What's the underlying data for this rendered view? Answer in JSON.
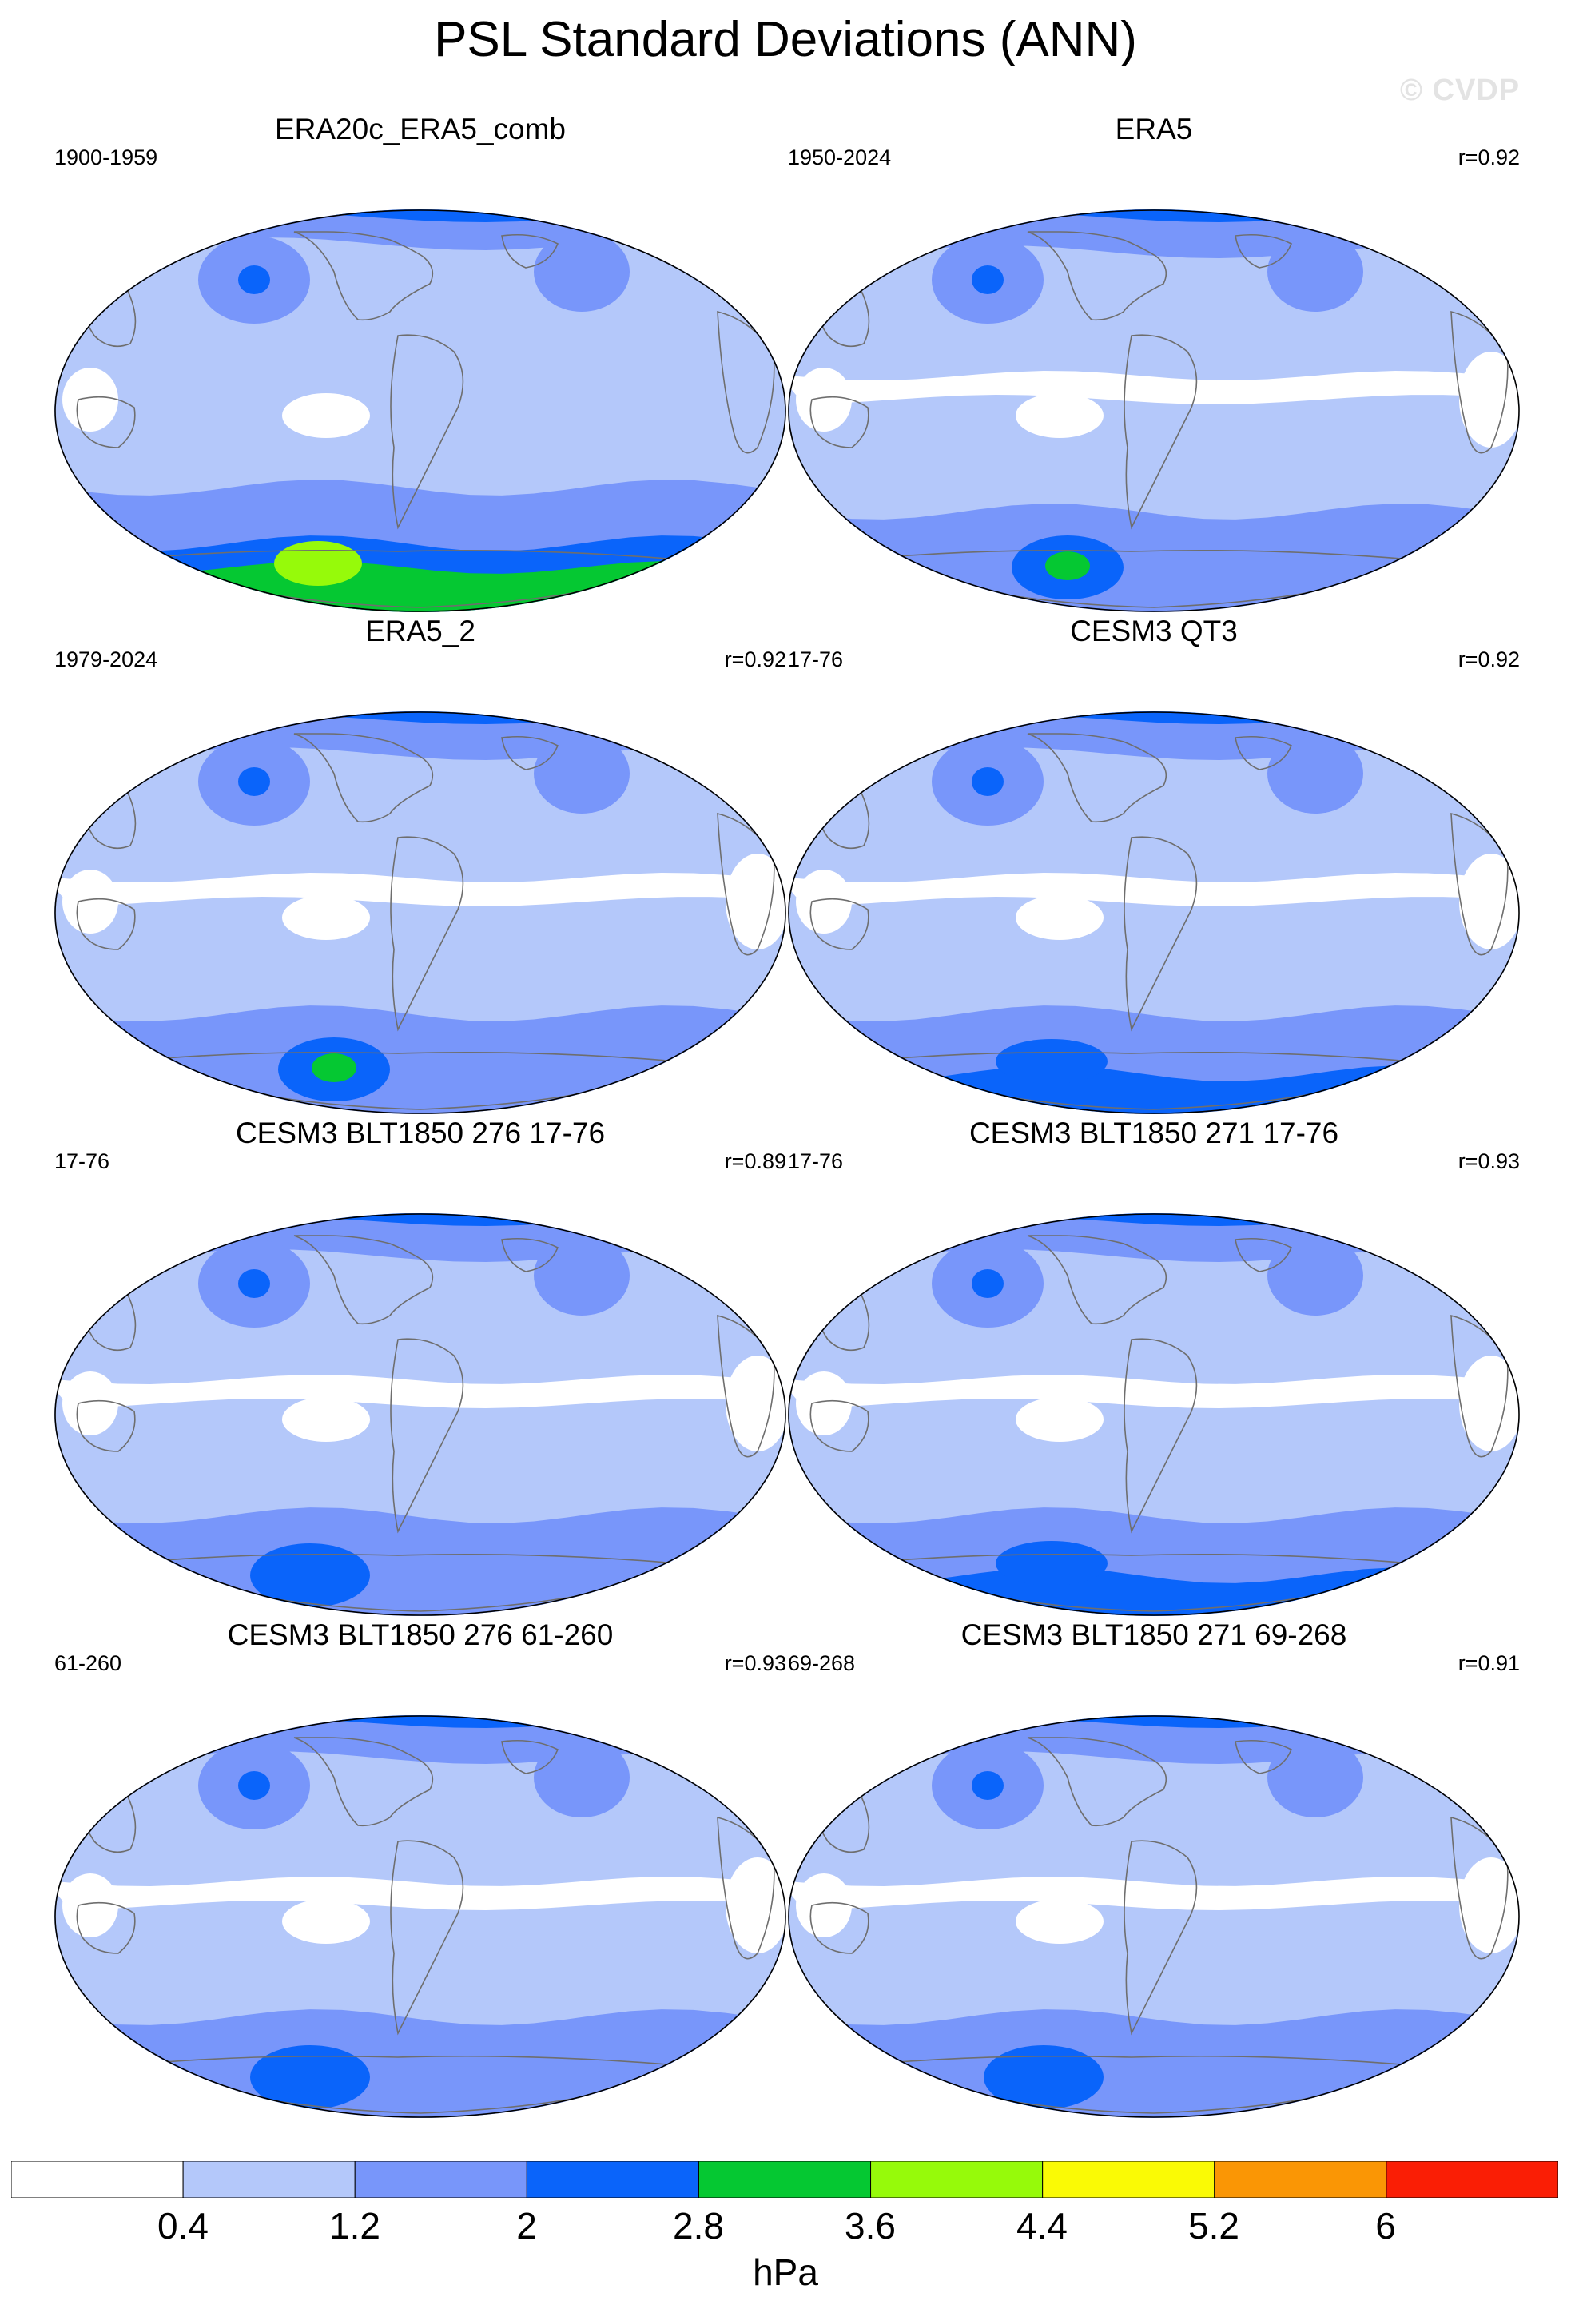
{
  "title": "PSL Standard Deviations (ANN)",
  "watermark": "© CVDP",
  "colors": {
    "lvl0": "#ffffff",
    "lvl1": "#b4c8fa",
    "lvl2": "#7896fa",
    "lvl3": "#0a64fa",
    "lvl4": "#05c832",
    "lvl5": "#96fa0a",
    "lvl6": "#fafa05",
    "lvl7": "#fa9605",
    "lvl8": "#fa1e05",
    "coast": "#6e6e6e"
  },
  "panels": [
    {
      "title": "ERA20c_ERA5_comb",
      "years": "1900-1959",
      "corr": "",
      "variant": "era20c"
    },
    {
      "title": "ERA5",
      "years": "1950-2024",
      "corr": "r=0.92",
      "variant": "era5"
    },
    {
      "title": "ERA5_2",
      "years": "1979-2024",
      "corr": "r=0.92",
      "variant": "era5"
    },
    {
      "title": "CESM3 QT3",
      "years": "17-76",
      "corr": "r=0.92",
      "variant": "model"
    },
    {
      "title": "CESM3 BLT1850 276 17-76",
      "years": "17-76",
      "corr": "r=0.89",
      "variant": "model2"
    },
    {
      "title": "CESM3 BLT1850 271 17-76",
      "years": "17-76",
      "corr": "r=0.93",
      "variant": "model"
    },
    {
      "title": "CESM3 BLT1850 276 61-260",
      "years": "61-260",
      "corr": "r=0.93",
      "variant": "model2"
    },
    {
      "title": "CESM3 BLT1850 271 69-268",
      "years": "69-268",
      "corr": "r=0.91",
      "variant": "model2"
    }
  ],
  "colorbar": {
    "labels": [
      "0.4",
      "1.2",
      "2",
      "2.8",
      "3.6",
      "4.4",
      "5.2",
      "6"
    ],
    "units": "hPa"
  }
}
